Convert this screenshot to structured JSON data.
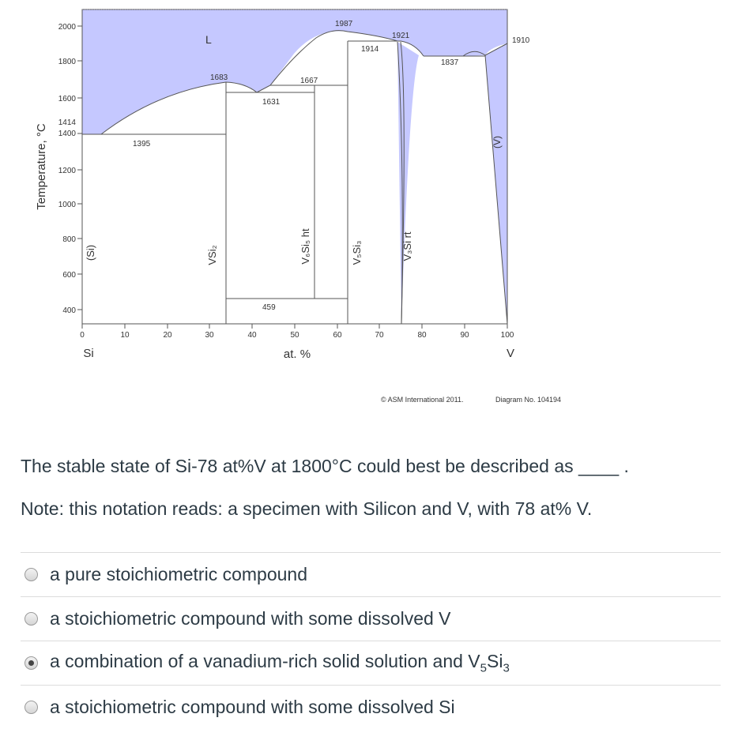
{
  "figure": {
    "ylabel": "Temperature, °C",
    "xlabel": "at. %",
    "left_element": "Si",
    "right_element": "V",
    "copyright": "© ASM International 2011.",
    "diagram_no": "Diagram No. 104194",
    "y_ticks": [
      "2000",
      "1800",
      "1600",
      "1414",
      "1400",
      "1200",
      "1000",
      "800",
      "600",
      "400"
    ],
    "x_ticks": [
      "0",
      "10",
      "20",
      "30",
      "40",
      "50",
      "60",
      "70",
      "80",
      "90",
      "100"
    ],
    "phase_labels": {
      "liquid": "L",
      "si": "(Si)",
      "vsi2": "VSi₂",
      "v6si5": "V₆Si₅ ht",
      "v5si3": "V₅Si₃",
      "v3si": "V₃Si rt",
      "v": "(V)"
    },
    "temperatures": {
      "t1987": "1987",
      "t1921": "1921",
      "t1914": "1914",
      "t1910": "1910",
      "t1837": "1837",
      "t1683": "1683",
      "t1667": "1667",
      "t1631": "1631",
      "t1395": "1395",
      "t459": "459"
    },
    "colors": {
      "liquid_fill": "#c5c8ff",
      "line": "#555555"
    }
  },
  "question": {
    "text": "The stable state of Si-78 at%V at 1800°C could best be described as ____ .",
    "note": "Note: this notation reads: a specimen with Silicon and V, with 78 at% V."
  },
  "answers": [
    {
      "label": "a pure stoichiometric compound",
      "selected": false
    },
    {
      "label": "a stoichiometric compound with some dissolved V",
      "selected": false
    },
    {
      "label_prefix": "a combination of a vanadium-rich solid solution and V",
      "sub1": "5",
      "mid": "Si",
      "sub2": "3",
      "selected": true
    },
    {
      "label": "a stoichiometric compound with some dissolved Si",
      "selected": false
    }
  ]
}
